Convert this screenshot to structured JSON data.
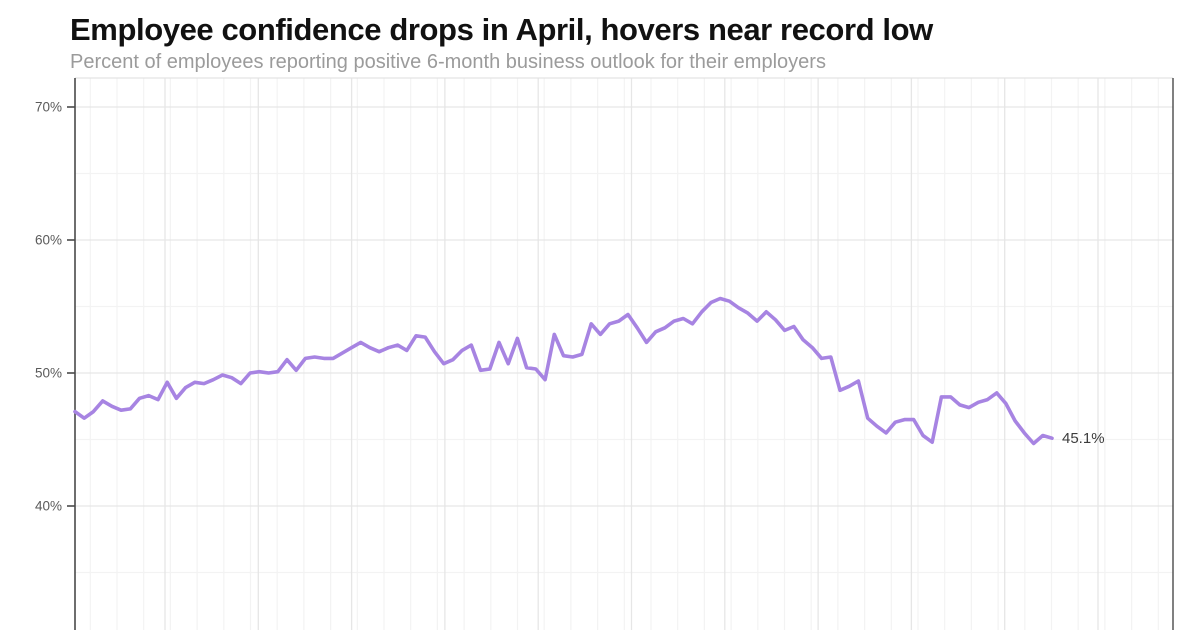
{
  "chart_data": {
    "type": "line",
    "title": "Employee confidence drops in April, hovers near record low",
    "subtitle": "Percent of employees reporting positive 6-month business outlook for their employers",
    "end_label": "45.1%",
    "y_axis": {
      "ticks": [
        {
          "label": "70%",
          "value": 70
        },
        {
          "label": "60%",
          "value": 60
        },
        {
          "label": "50%",
          "value": 50
        },
        {
          "label": "40%",
          "value": 40
        }
      ],
      "minor_values": [
        65,
        55,
        45,
        35
      ],
      "ylim_visible": [
        31,
        72
      ]
    },
    "x_axis": {
      "tick_labels_visible": false
    },
    "grid": true,
    "series": [
      {
        "name": "percent-positive-outlook",
        "color": "#a784e2",
        "values": [
          47.1,
          46.6,
          47.1,
          47.9,
          47.5,
          47.2,
          47.3,
          48.1,
          48.3,
          48.0,
          49.3,
          48.1,
          48.9,
          49.3,
          49.2,
          49.5,
          49.85,
          49.65,
          49.2,
          50.0,
          50.1,
          50.0,
          50.1,
          51.0,
          50.2,
          51.1,
          51.2,
          51.1,
          51.1,
          51.5,
          51.9,
          52.3,
          51.9,
          51.6,
          51.9,
          52.1,
          51.7,
          52.8,
          52.7,
          51.6,
          50.7,
          51.0,
          51.7,
          52.1,
          50.2,
          50.3,
          52.3,
          50.7,
          52.6,
          50.4,
          50.3,
          49.5,
          52.9,
          51.3,
          51.2,
          51.4,
          53.7,
          52.9,
          53.7,
          53.9,
          54.4,
          53.4,
          52.3,
          53.1,
          53.4,
          53.9,
          54.1,
          53.7,
          54.6,
          55.3,
          55.6,
          55.4,
          54.9,
          54.5,
          53.9,
          54.6,
          54.0,
          53.2,
          53.5,
          52.5,
          51.9,
          51.1,
          51.2,
          48.7,
          49.0,
          49.4,
          46.6,
          46.0,
          45.5,
          46.3,
          46.5,
          46.5,
          45.3,
          44.8,
          48.2,
          48.2,
          47.6,
          47.4,
          47.8,
          48.0,
          48.5,
          47.7,
          46.4,
          45.5,
          44.7,
          45.3,
          45.1
        ]
      }
    ],
    "colors": {
      "line": "#a784e2",
      "title": "#111111",
      "subtitle": "#9b9b9b",
      "axis": "#4a4a4a",
      "tick_label": "#5a5a5a",
      "end_label": "#3c3c3c",
      "grid_major": "#e6e6e6",
      "grid_minor": "#f3f3f3",
      "background": "#ffffff"
    }
  }
}
